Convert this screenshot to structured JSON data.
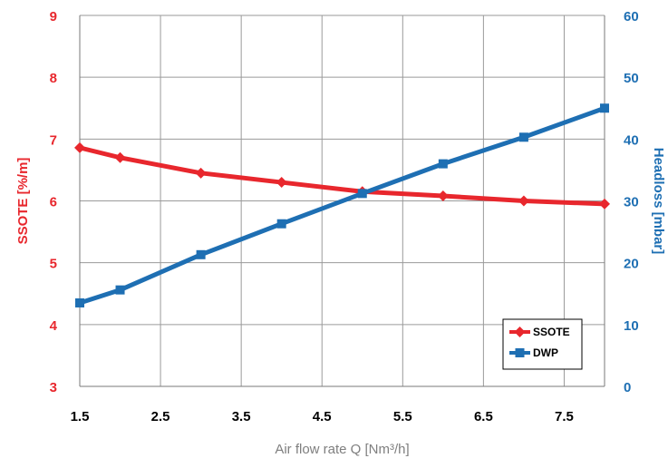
{
  "chart_data": {
    "type": "line",
    "title": "",
    "xlabel": "Air flow rate Q [Nm³/h]",
    "ylabel_left": "SSOTE [%/m]",
    "ylabel_right": "Headloss [mbar]",
    "xlim": [
      1.5,
      8
    ],
    "ylim_left": [
      3,
      9
    ],
    "ylim_right": [
      0,
      60
    ],
    "x_ticks": [
      "1.5",
      "2.5",
      "3.5",
      "4.5",
      "5.5",
      "6.5",
      "7.5"
    ],
    "y_left_ticks": [
      "3",
      "4",
      "5",
      "6",
      "7",
      "8",
      "9"
    ],
    "y_right_ticks": [
      "0",
      "10",
      "20",
      "30",
      "40",
      "50",
      "60"
    ],
    "grid": true,
    "legend_position": "bottom-right",
    "colors": {
      "left_axis": "#e8272d",
      "right_axis": "#1e6fb3"
    },
    "series": [
      {
        "name": "SSOTE",
        "axis": "left",
        "marker": "diamond",
        "color": "#e8272d",
        "x": [
          1.5,
          2,
          3,
          4,
          5,
          6,
          7,
          8
        ],
        "y": [
          6.86,
          6.7,
          6.45,
          6.3,
          6.15,
          6.08,
          6.0,
          5.95
        ]
      },
      {
        "name": "DWP",
        "axis": "right",
        "marker": "square",
        "color": "#1e6fb3",
        "x": [
          1.5,
          2,
          3,
          4,
          5,
          6,
          7,
          8
        ],
        "y": [
          13.5,
          15.6,
          21.3,
          26.3,
          31.2,
          36.0,
          40.3,
          45.0
        ]
      }
    ]
  }
}
